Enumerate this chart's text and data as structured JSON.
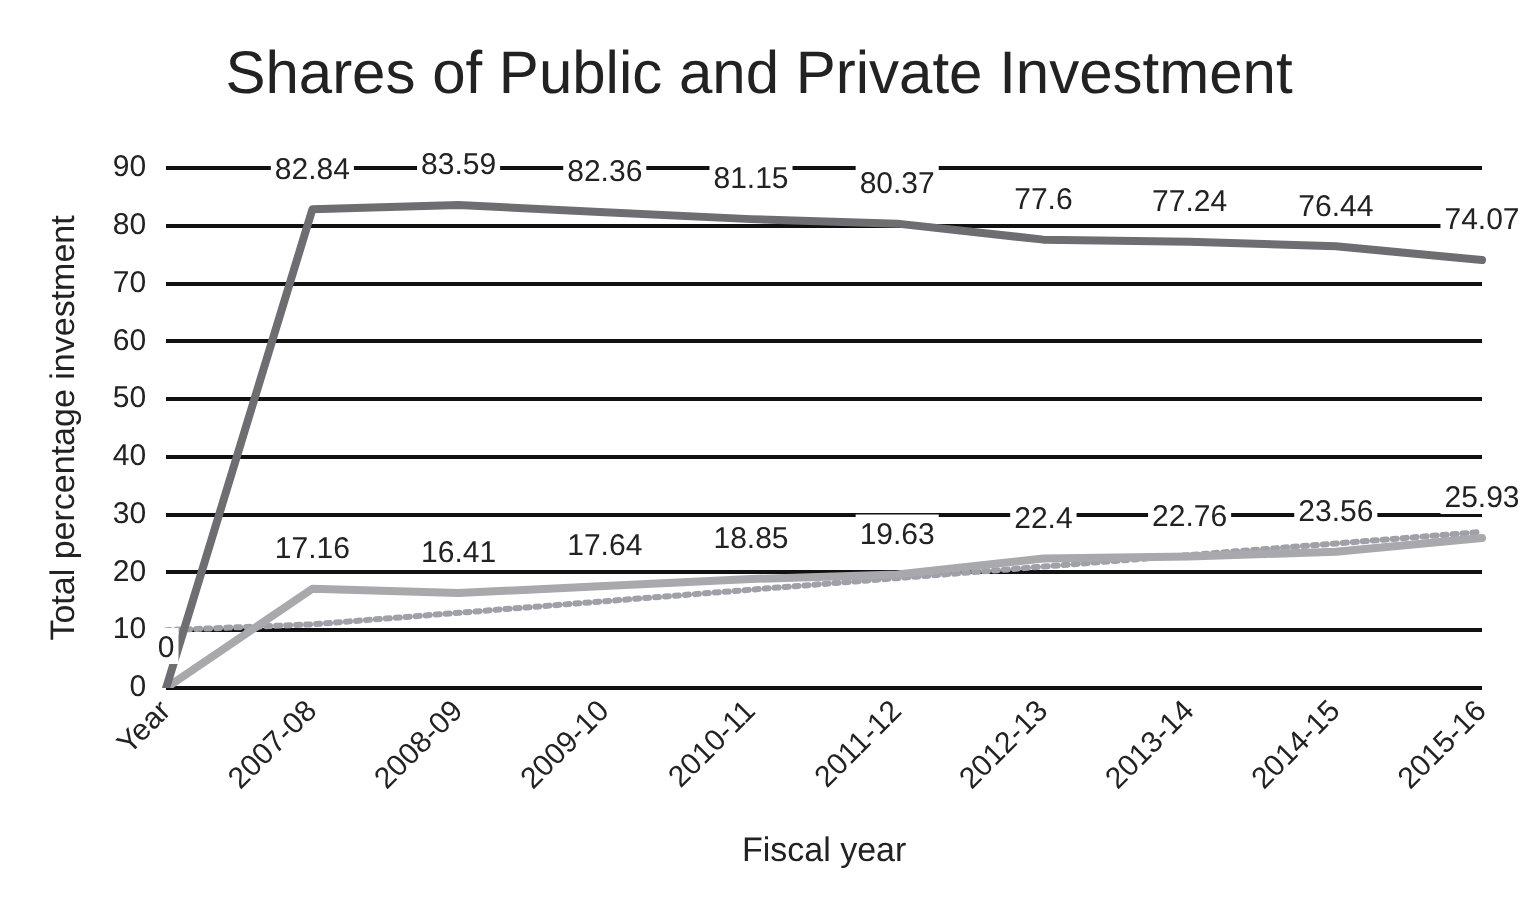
{
  "chart_data": {
    "type": "line",
    "title": "Shares of Public and Private Investment",
    "xlabel": "Fiscal year",
    "ylabel": "Total percentage investment",
    "categories": [
      "Year",
      "2007-08",
      "2008-09",
      "2009-10",
      "2010-11",
      "2011-12",
      "2012-13",
      "2013-14",
      "2014-15",
      "2015-16"
    ],
    "series": [
      {
        "color": "#6e6e72",
        "values": [
          0,
          82.84,
          83.59,
          82.36,
          81.15,
          80.37,
          77.6,
          77.24,
          76.44,
          74.07
        ],
        "value_labels": [
          "0",
          "82.84",
          "83.59",
          "82.36",
          "81.15",
          "80.37",
          "77.6",
          "77.24",
          "76.44",
          "74.07"
        ]
      },
      {
        "color": "#a9a9ad",
        "values": [
          0,
          17.16,
          16.41,
          17.64,
          18.85,
          19.63,
          22.4,
          22.76,
          23.56,
          25.93
        ],
        "value_labels": [
          null,
          "17.16",
          "16.41",
          "17.64",
          "18.85",
          "19.63",
          "22.4",
          "22.76",
          "23.56",
          "25.93"
        ]
      },
      {
        "type": "line",
        "color": "#a0a0a8",
        "line_style": "dotted",
        "values": [
          10,
          11,
          13,
          15,
          17,
          19,
          21,
          23,
          25,
          27
        ]
      }
    ],
    "ylim": [
      0,
      90
    ],
    "yticks": [
      0,
      10,
      20,
      30,
      40,
      50,
      60,
      70,
      80,
      90
    ],
    "grid": "y",
    "legend": false
  }
}
